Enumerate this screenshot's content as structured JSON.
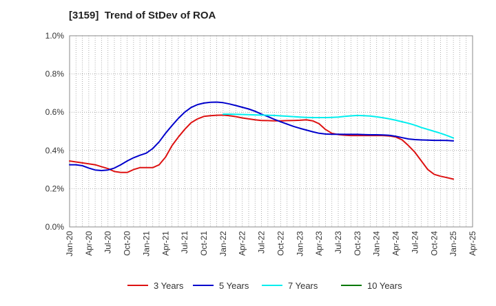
{
  "chart_data": {
    "type": "line",
    "title": "[3159]  Trend of StDev of ROA",
    "xlabel": "",
    "ylabel": "",
    "ylim": [
      0,
      1.0
    ],
    "y_ticks": [
      "0.0%",
      "0.2%",
      "0.4%",
      "0.6%",
      "0.8%",
      "1.0%"
    ],
    "x_ticks": [
      "Jan-20",
      "Apr-20",
      "Jul-20",
      "Oct-20",
      "Jan-21",
      "Apr-21",
      "Jul-21",
      "Oct-21",
      "Jan-22",
      "Apr-22",
      "Jul-22",
      "Oct-22",
      "Jan-23",
      "Apr-23",
      "Jul-23",
      "Oct-23",
      "Jan-24",
      "Apr-24",
      "Jul-24",
      "Oct-24",
      "Jan-25",
      "Apr-25"
    ],
    "x_range": [
      "Jan-20",
      "Apr-25"
    ],
    "grid": "vertical monthly and horizontal dotted",
    "legend_position": "bottom",
    "series": [
      {
        "name": "3 Years",
        "color": "#dd1111",
        "x": [
          "Jan-20",
          "Feb-20",
          "Mar-20",
          "Apr-20",
          "May-20",
          "Jun-20",
          "Jul-20",
          "Aug-20",
          "Sep-20",
          "Oct-20",
          "Nov-20",
          "Dec-20",
          "Jan-21",
          "Feb-21",
          "Mar-21",
          "Apr-21",
          "May-21",
          "Jun-21",
          "Jul-21",
          "Aug-21",
          "Sep-21",
          "Oct-21",
          "Nov-21",
          "Dec-21",
          "Jan-22",
          "Feb-22",
          "Mar-22",
          "Apr-22",
          "May-22",
          "Jun-22",
          "Jul-22",
          "Aug-22",
          "Sep-22",
          "Oct-22",
          "Nov-22",
          "Dec-22",
          "Jan-23",
          "Feb-23",
          "Mar-23",
          "Apr-23",
          "May-23",
          "Jun-23",
          "Jul-23",
          "Aug-23",
          "Sep-23",
          "Oct-23",
          "Nov-23",
          "Dec-23",
          "Jan-24",
          "Feb-24",
          "Mar-24",
          "Apr-24",
          "May-24",
          "Jun-24",
          "Jul-24",
          "Aug-24",
          "Sep-24",
          "Oct-24",
          "Nov-24",
          "Dec-24",
          "Jan-25"
        ],
        "values": [
          0.345,
          0.34,
          0.335,
          0.33,
          0.325,
          0.315,
          0.305,
          0.29,
          0.285,
          0.285,
          0.3,
          0.31,
          0.31,
          0.31,
          0.325,
          0.365,
          0.425,
          0.47,
          0.51,
          0.545,
          0.565,
          0.578,
          0.582,
          0.584,
          0.585,
          0.582,
          0.577,
          0.57,
          0.565,
          0.56,
          0.557,
          0.556,
          0.555,
          0.555,
          0.556,
          0.557,
          0.558,
          0.56,
          0.555,
          0.54,
          0.51,
          0.49,
          0.483,
          0.48,
          0.478,
          0.478,
          0.478,
          0.478,
          0.478,
          0.478,
          0.476,
          0.47,
          0.455,
          0.425,
          0.39,
          0.345,
          0.3,
          0.275,
          0.265,
          0.258,
          0.25
        ]
      },
      {
        "name": "5 Years",
        "color": "#0000cc",
        "x": [
          "Jan-20",
          "Feb-20",
          "Mar-20",
          "Apr-20",
          "May-20",
          "Jun-20",
          "Jul-20",
          "Aug-20",
          "Sep-20",
          "Oct-20",
          "Nov-20",
          "Dec-20",
          "Jan-21",
          "Feb-21",
          "Mar-21",
          "Apr-21",
          "May-21",
          "Jun-21",
          "Jul-21",
          "Aug-21",
          "Sep-21",
          "Oct-21",
          "Nov-21",
          "Dec-21",
          "Jan-22",
          "Feb-22",
          "Mar-22",
          "Apr-22",
          "May-22",
          "Jun-22",
          "Jul-22",
          "Aug-22",
          "Sep-22",
          "Oct-22",
          "Nov-22",
          "Dec-22",
          "Jan-23",
          "Feb-23",
          "Mar-23",
          "Apr-23",
          "May-23",
          "Jun-23",
          "Jul-23",
          "Aug-23",
          "Sep-23",
          "Oct-23",
          "Nov-23",
          "Dec-23",
          "Jan-24",
          "Feb-24",
          "Mar-24",
          "Apr-24",
          "May-24",
          "Jun-24",
          "Jul-24",
          "Aug-24",
          "Sep-24",
          "Oct-24",
          "Nov-24",
          "Dec-24",
          "Jan-25"
        ],
        "values": [
          0.325,
          0.325,
          0.32,
          0.308,
          0.298,
          0.295,
          0.298,
          0.308,
          0.325,
          0.345,
          0.362,
          0.375,
          0.386,
          0.41,
          0.445,
          0.49,
          0.53,
          0.568,
          0.6,
          0.625,
          0.64,
          0.648,
          0.652,
          0.653,
          0.65,
          0.643,
          0.635,
          0.626,
          0.617,
          0.605,
          0.59,
          0.577,
          0.563,
          0.55,
          0.538,
          0.526,
          0.516,
          0.507,
          0.498,
          0.49,
          0.486,
          0.485,
          0.485,
          0.484,
          0.484,
          0.484,
          0.483,
          0.482,
          0.482,
          0.481,
          0.479,
          0.474,
          0.467,
          0.46,
          0.457,
          0.455,
          0.454,
          0.453,
          0.453,
          0.452,
          0.45
        ]
      },
      {
        "name": "7 Years",
        "color": "#00eeee",
        "x": [
          "Jan-22",
          "Feb-22",
          "Mar-22",
          "Apr-22",
          "May-22",
          "Jun-22",
          "Jul-22",
          "Aug-22",
          "Sep-22",
          "Oct-22",
          "Nov-22",
          "Dec-22",
          "Jan-23",
          "Feb-23",
          "Mar-23",
          "Apr-23",
          "May-23",
          "Jun-23",
          "Jul-23",
          "Aug-23",
          "Sep-23",
          "Oct-23",
          "Nov-23",
          "Dec-23",
          "Jan-24",
          "Feb-24",
          "Mar-24",
          "Apr-24",
          "May-24",
          "Jun-24",
          "Jul-24",
          "Aug-24",
          "Sep-24",
          "Oct-24",
          "Nov-24",
          "Dec-24",
          "Jan-25"
        ],
        "values": [
          0.59,
          0.59,
          0.589,
          0.588,
          0.587,
          0.586,
          0.585,
          0.584,
          0.583,
          0.581,
          0.579,
          0.577,
          0.575,
          0.573,
          0.572,
          0.572,
          0.572,
          0.573,
          0.575,
          0.578,
          0.581,
          0.583,
          0.582,
          0.58,
          0.576,
          0.571,
          0.565,
          0.558,
          0.55,
          0.542,
          0.532,
          0.52,
          0.51,
          0.5,
          0.49,
          0.478,
          0.465
        ]
      },
      {
        "name": "10 Years",
        "color": "#007700",
        "x": [],
        "values": []
      }
    ]
  }
}
